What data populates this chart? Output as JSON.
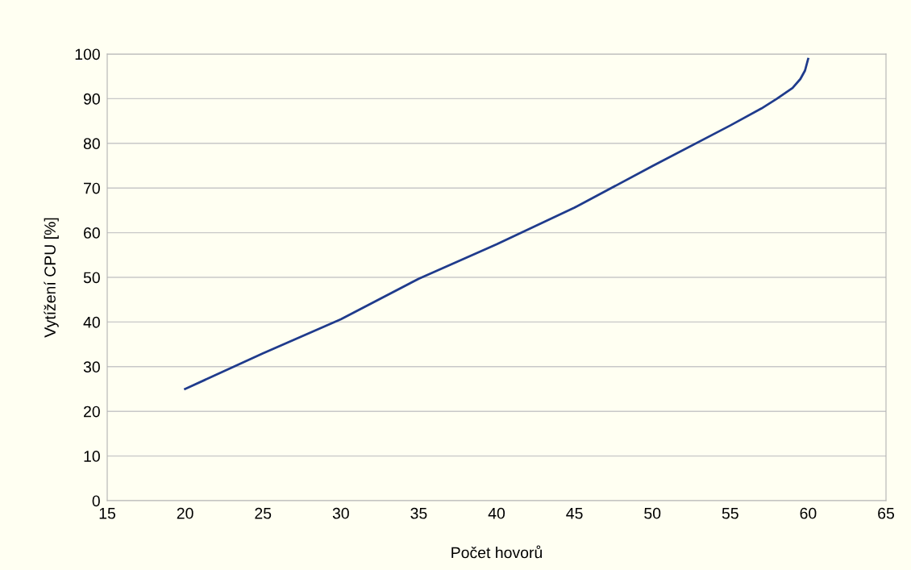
{
  "chart_data": {
    "type": "line",
    "xlabel": "Počet hovorů",
    "ylabel": "Vytížení CPU [%]",
    "x": [
      20,
      25,
      30,
      35,
      40,
      45,
      50,
      55,
      57,
      58,
      59,
      59.5,
      59.8,
      60
    ],
    "series": [
      {
        "color": "#1f3b8c",
        "values": [
          25,
          33,
          40.6,
          49.7,
          57.4,
          65.6,
          74.9,
          84,
          87.8,
          90,
          92.4,
          94.4,
          96.3,
          98.9
        ]
      }
    ],
    "xlim": [
      15,
      65
    ],
    "xticks": [
      15,
      20,
      25,
      30,
      35,
      40,
      45,
      50,
      55,
      60,
      65
    ],
    "ylim": [
      0,
      100
    ],
    "yticks": [
      0,
      10,
      20,
      30,
      40,
      50,
      60,
      70,
      80,
      90,
      100
    ],
    "grid": "y",
    "marker": "none",
    "line_style": "solid"
  }
}
